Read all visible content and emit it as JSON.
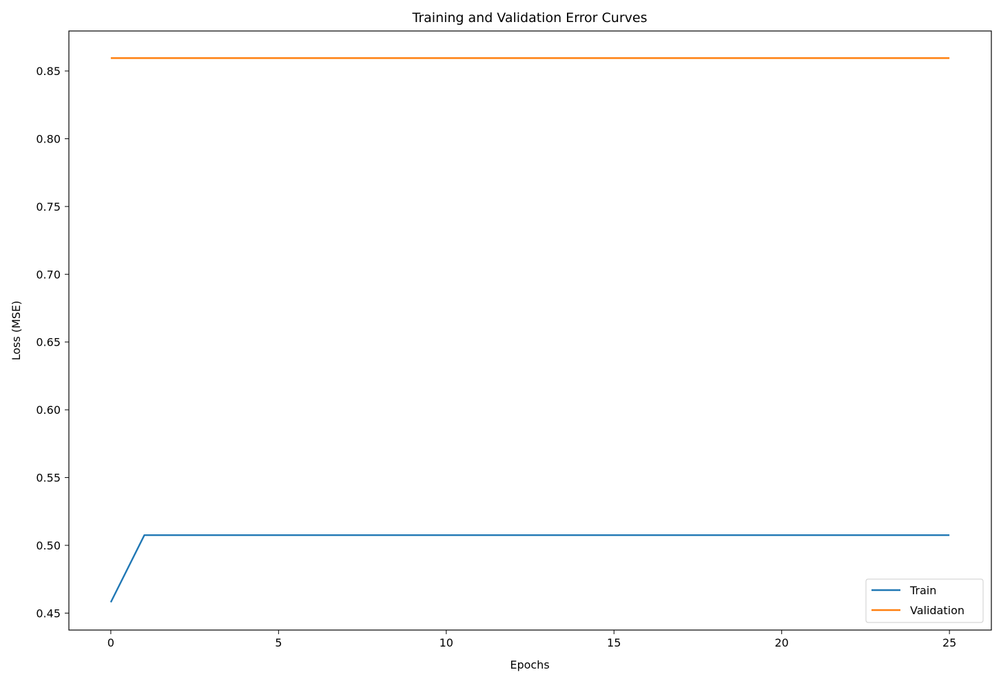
{
  "chart_data": {
    "type": "line",
    "title": "Training and Validation Error Curves",
    "xlabel": "Epochs",
    "ylabel": "Loss (MSE)",
    "xlim": [
      -1.25,
      26.25
    ],
    "ylim": [
      0.4375,
      0.8795
    ],
    "xticks": [
      0,
      5,
      10,
      15,
      20,
      25
    ],
    "xtick_labels": [
      "0",
      "5",
      "10",
      "15",
      "20",
      "25"
    ],
    "yticks": [
      0.45,
      0.5,
      0.55,
      0.6,
      0.65,
      0.7,
      0.75,
      0.8,
      0.85
    ],
    "ytick_labels": [
      "0.45",
      "0.50",
      "0.55",
      "0.60",
      "0.65",
      "0.70",
      "0.75",
      "0.80",
      "0.85"
    ],
    "grid": false,
    "legend_position": "lower-right",
    "x": [
      0,
      1,
      2,
      3,
      4,
      5,
      6,
      7,
      8,
      9,
      10,
      11,
      12,
      13,
      14,
      15,
      16,
      17,
      18,
      19,
      20,
      21,
      22,
      23,
      24,
      25
    ],
    "series": [
      {
        "name": "Train",
        "color": "#1f77b4",
        "values": [
          0.458,
          0.5075,
          0.5075,
          0.5075,
          0.5075,
          0.5075,
          0.5075,
          0.5075,
          0.5075,
          0.5075,
          0.5075,
          0.5075,
          0.5075,
          0.5075,
          0.5075,
          0.5075,
          0.5075,
          0.5075,
          0.5075,
          0.5075,
          0.5075,
          0.5075,
          0.5075,
          0.5075,
          0.5075,
          0.5075
        ]
      },
      {
        "name": "Validation",
        "color": "#ff7f0e",
        "values": [
          0.8595,
          0.8595,
          0.8595,
          0.8595,
          0.8595,
          0.8595,
          0.8595,
          0.8595,
          0.8595,
          0.8595,
          0.8595,
          0.8595,
          0.8595,
          0.8595,
          0.8595,
          0.8595,
          0.8595,
          0.8595,
          0.8595,
          0.8595,
          0.8595,
          0.8595,
          0.8595,
          0.8595,
          0.8595,
          0.8595
        ]
      }
    ]
  }
}
